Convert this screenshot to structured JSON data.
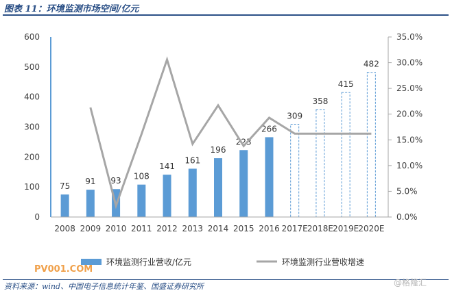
{
  "header": {
    "title": "图表 11：环境监测市场空间/亿元"
  },
  "footer": {
    "source": "资料来源：wind、中国电子信息统计年鉴、国盛证券研究所"
  },
  "watermarks": {
    "left": "PV001.COM",
    "right": "@格隆汇"
  },
  "chart_data": {
    "type": "bar",
    "categories": [
      "2008",
      "2009",
      "2010",
      "2011",
      "2012",
      "2013",
      "2014",
      "2015",
      "2016",
      "2017E",
      "2018E",
      "2019E",
      "2020E"
    ],
    "series": [
      {
        "name": "环境监测行业营收/亿元",
        "kind": "bar",
        "axis": "left",
        "values": [
          75,
          91,
          93,
          108,
          141,
          161,
          196,
          223,
          266,
          309,
          358,
          415,
          482
        ],
        "labels": [
          "75",
          "91",
          "93",
          "108",
          "141",
          "161",
          "196",
          "223",
          "266",
          "309",
          "358",
          "415",
          "482"
        ],
        "forecast_from_index": 9,
        "color": "#5b9bd5"
      },
      {
        "name": "环境监测行业营收增速",
        "kind": "line",
        "axis": "right",
        "values": [
          null,
          21.3,
          2.2,
          16.1,
          30.6,
          14.2,
          21.7,
          13.8,
          19.3,
          16.2,
          16.2,
          16.2,
          16.2
        ],
        "color": "#a6a6a6"
      }
    ],
    "left_axis": {
      "min": 0,
      "max": 600,
      "ticks": [
        "0",
        "100",
        "200",
        "300",
        "400",
        "500",
        "600"
      ]
    },
    "right_axis": {
      "min": 0,
      "max": 35,
      "ticks": [
        "0.0%",
        "5.0%",
        "10.0%",
        "15.0%",
        "20.0%",
        "25.0%",
        "30.0%",
        "35.0%"
      ]
    },
    "legend": {
      "position": "bottom"
    },
    "grid": false
  }
}
